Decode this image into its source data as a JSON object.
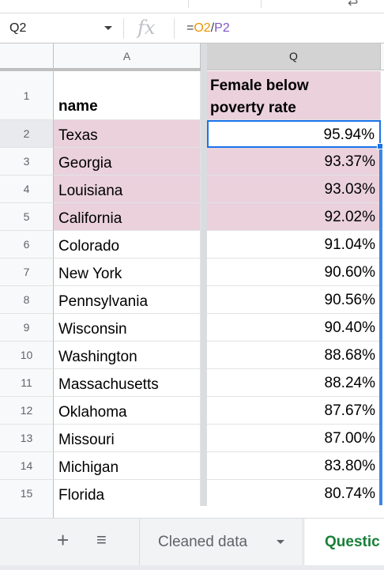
{
  "formula_bar": {
    "cell_ref": "Q2",
    "fx_label": "fx",
    "formula_eq": "=",
    "formula_ref1": "O2",
    "formula_op": "/",
    "formula_ref2": "P2"
  },
  "columns": {
    "a": "A",
    "q": "Q"
  },
  "header_row": {
    "number": "1",
    "a": "name",
    "q_line1": "Female below",
    "q_line2": "poverty rate"
  },
  "rows": [
    {
      "num": "2",
      "name": "Texas",
      "value": "95.94%"
    },
    {
      "num": "3",
      "name": "Georgia",
      "value": "93.37%"
    },
    {
      "num": "4",
      "name": "Louisiana",
      "value": "93.03%"
    },
    {
      "num": "5",
      "name": "California",
      "value": "92.02%"
    },
    {
      "num": "6",
      "name": "Colorado",
      "value": "91.04%"
    },
    {
      "num": "7",
      "name": "New York",
      "value": "90.60%"
    },
    {
      "num": "8",
      "name": "Pennsylvania",
      "value": "90.56%"
    },
    {
      "num": "9",
      "name": "Wisconsin",
      "value": "90.40%"
    },
    {
      "num": "10",
      "name": "Washington",
      "value": "88.68%"
    },
    {
      "num": "11",
      "name": "Massachusetts",
      "value": "88.24%"
    },
    {
      "num": "12",
      "name": "Oklahoma",
      "value": "87.67%"
    },
    {
      "num": "13",
      "name": "Missouri",
      "value": "87.00%"
    },
    {
      "num": "14",
      "name": "Michigan",
      "value": "83.80%"
    },
    {
      "num": "15",
      "name": "Florida",
      "value": "80.74%"
    }
  ],
  "tabs": {
    "add": "+",
    "all": "≡",
    "cleaned": "Cleaned data",
    "question": "Questic"
  },
  "colors": {
    "highlight": "#ead1dc",
    "selection": "#1a73e8",
    "active_tab": "#188038"
  }
}
